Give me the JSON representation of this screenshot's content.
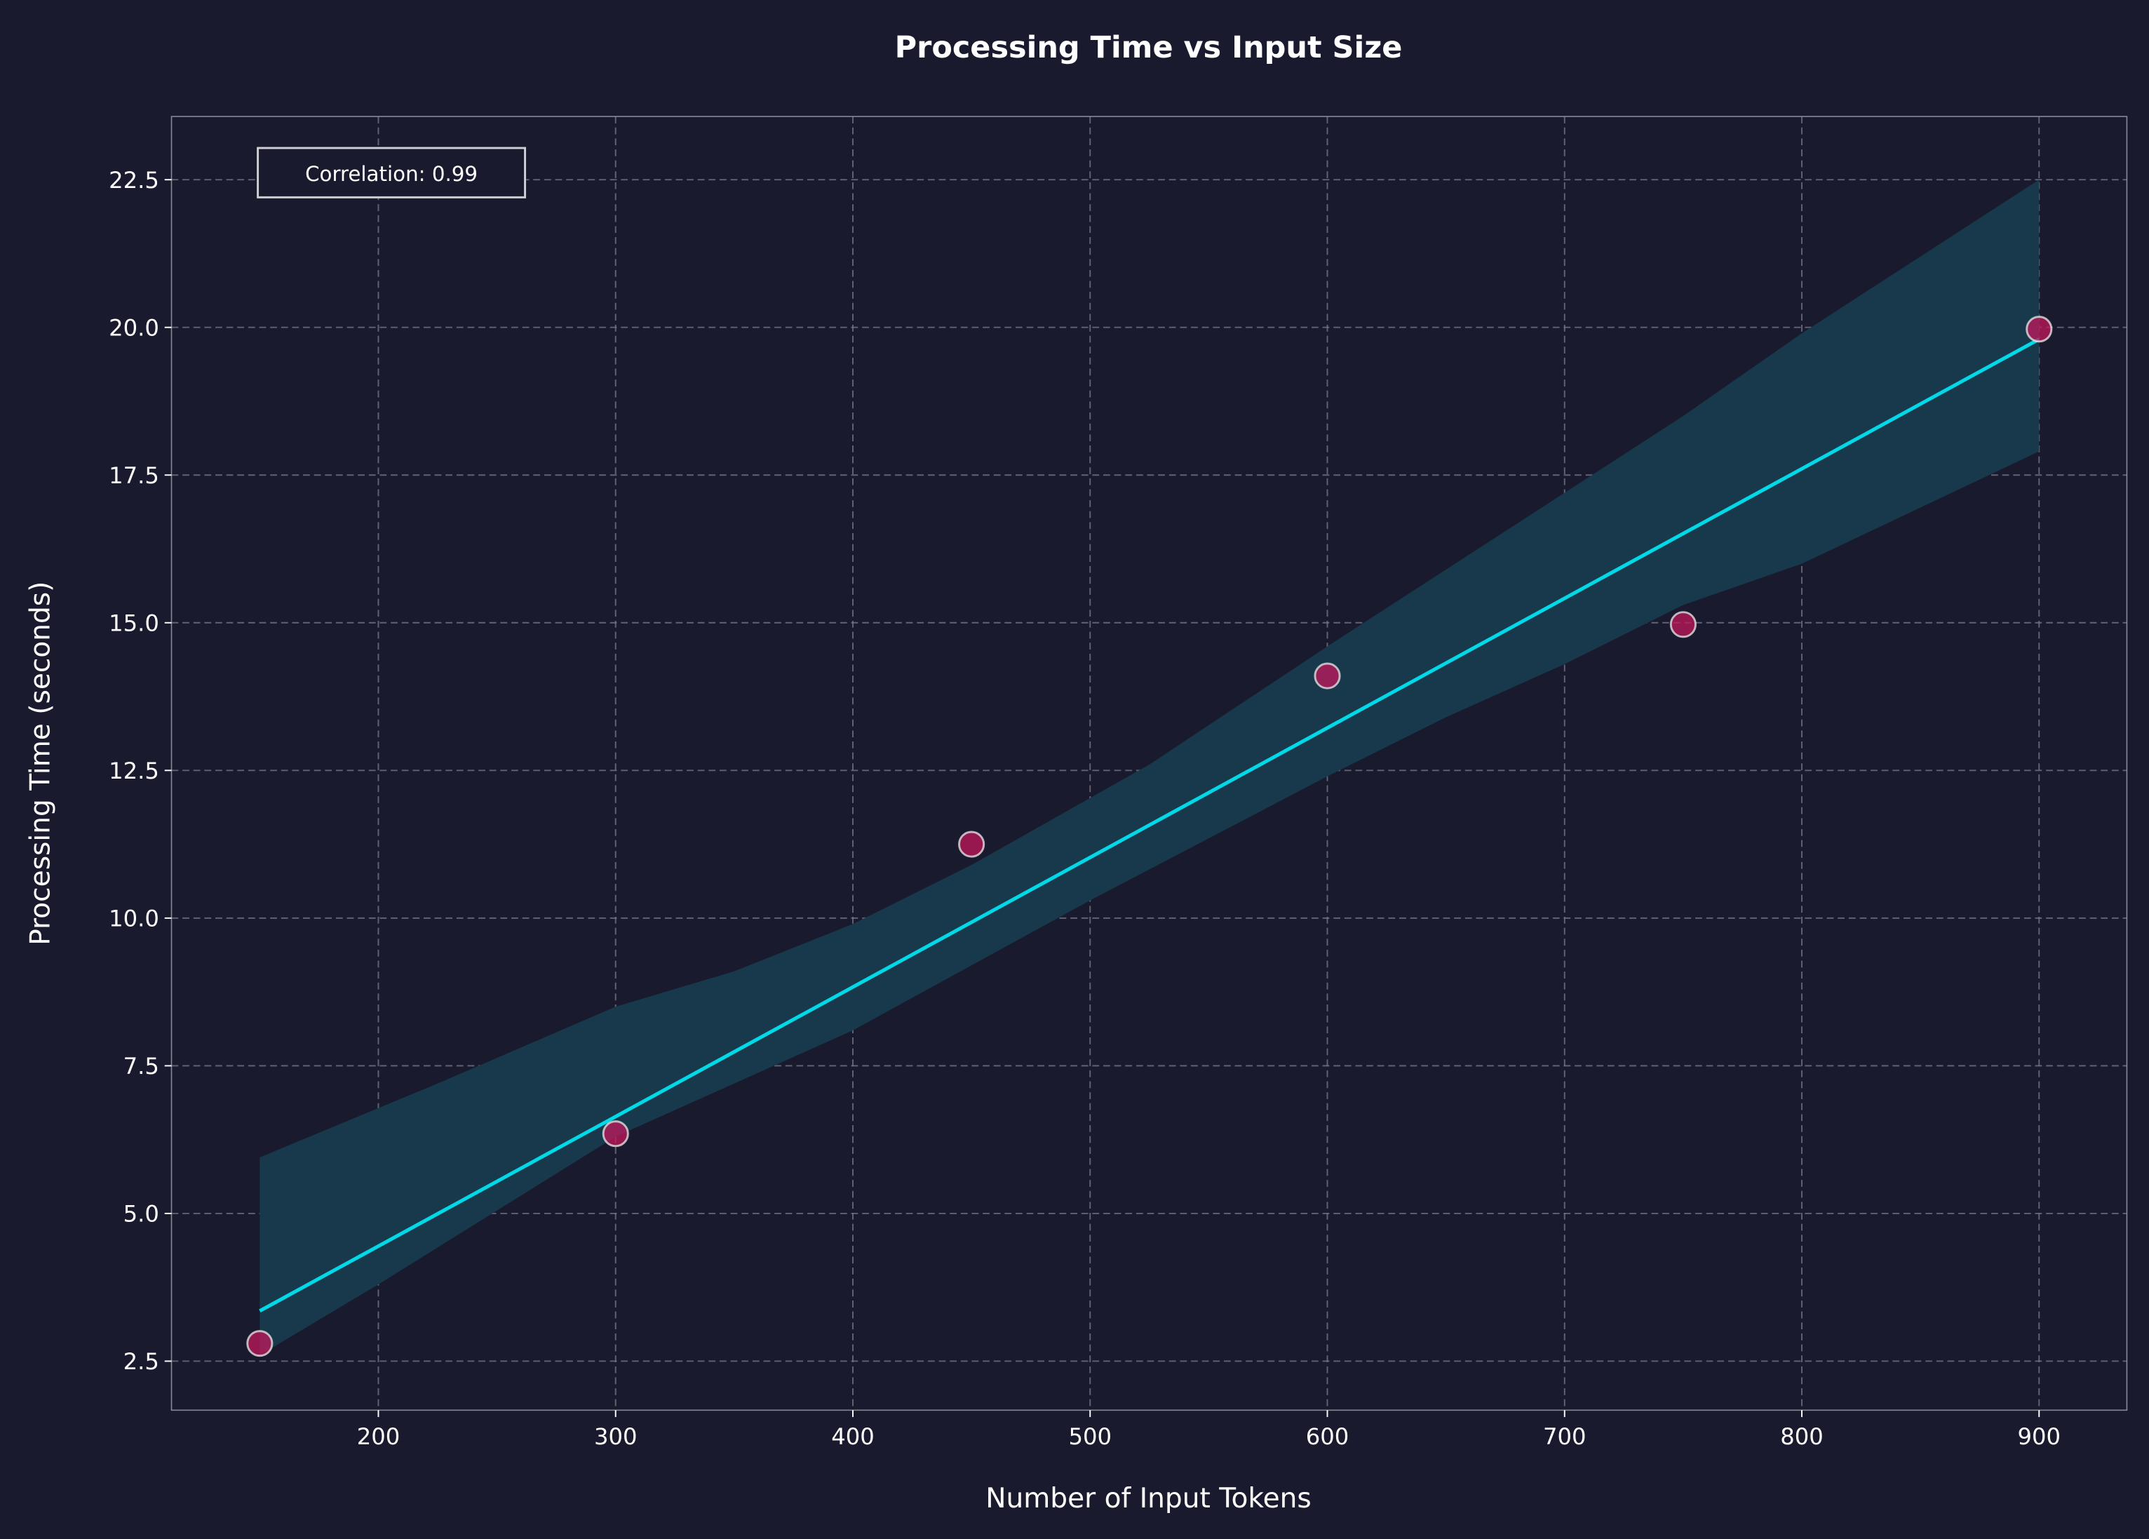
{
  "chart_data": {
    "type": "scatter",
    "title": "Processing Time vs Input Size",
    "xlabel": "Number of Input Tokens",
    "ylabel": "Processing Time (seconds)",
    "xlim": [
      112.8,
      937
    ],
    "ylim": [
      1.67,
      23.57
    ],
    "xticks": [
      200,
      300,
      400,
      500,
      600,
      700,
      800,
      900
    ],
    "yticks": [
      2.5,
      5.0,
      7.5,
      10.0,
      12.5,
      15.0,
      17.5,
      20.0,
      22.5
    ],
    "grid": true,
    "points": {
      "x": [
        150,
        300,
        450,
        600,
        750,
        900
      ],
      "y": [
        2.8,
        6.35,
        11.25,
        14.1,
        14.97,
        19.97
      ]
    },
    "fit_line": {
      "x": [
        150,
        900
      ],
      "y": [
        3.35,
        19.8
      ]
    },
    "confidence_band": {
      "upper": {
        "x": [
          150,
          225,
          300,
          350,
          400,
          450,
          525,
          600,
          650,
          700,
          750,
          800,
          900
        ],
        "y": [
          5.95,
          7.2,
          8.5,
          9.1,
          9.9,
          10.9,
          12.6,
          14.6,
          15.9,
          17.2,
          18.5,
          19.9,
          22.5
        ]
      },
      "lower": {
        "x": [
          150,
          200,
          300,
          400,
          450,
          500,
          600,
          650,
          700,
          750,
          800,
          900
        ],
        "y": [
          2.6,
          3.8,
          6.3,
          8.1,
          9.2,
          10.3,
          12.4,
          13.4,
          14.3,
          15.3,
          16.0,
          17.9
        ]
      }
    },
    "annotation": "Correlation: 0.99",
    "colors": {
      "background": "#1a1a2e",
      "points": "#c2185b",
      "point_edge": "#e0e0e0",
      "line": "#00d9e8",
      "band": "#17394b",
      "grid": "#7a7a8c"
    }
  }
}
